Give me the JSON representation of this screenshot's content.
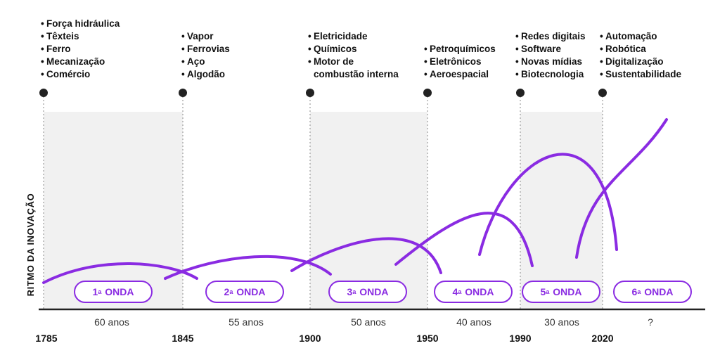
{
  "axis_label": "RITMO DA INOVAÇÃO",
  "accent_color": "#8a2be2",
  "years": [
    "1785",
    "1845",
    "1900",
    "1950",
    "1990",
    "2020"
  ],
  "durations": [
    "60 anos",
    "55 anos",
    "50 anos",
    "40 anos",
    "30 anos",
    "?"
  ],
  "waves": [
    {
      "num": "1",
      "ord": "a",
      "word": "ONDA"
    },
    {
      "num": "2",
      "ord": "a",
      "word": "ONDA"
    },
    {
      "num": "3",
      "ord": "a",
      "word": "ONDA"
    },
    {
      "num": "4",
      "ord": "a",
      "word": "ONDA"
    },
    {
      "num": "5",
      "ord": "a",
      "word": "ONDA"
    },
    {
      "num": "6",
      "ord": "a",
      "word": "ONDA"
    }
  ],
  "technologies": [
    [
      "Força hidráulica",
      "Têxteis",
      "Ferro",
      "Mecanização",
      "Comércio"
    ],
    [
      "Vapor",
      "Ferrovias",
      "Aço",
      "Algodão"
    ],
    [
      "Eletricidade",
      "Químicos",
      "Motor de",
      "combustão interna"
    ],
    [
      "Petroquímicos",
      "Eletrônicos",
      "Aeroespacial"
    ],
    [
      "Redes digitais",
      "Software",
      "Novas mídias",
      "Biotecnologia"
    ],
    [
      "Automação",
      "Robótica",
      "Digitalização",
      "Sustentabilidade"
    ]
  ],
  "chart_data": {
    "type": "line",
    "ylabel": "RITMO DA INOVAÇÃO",
    "x_ticks": [
      "1785",
      "1845",
      "1900",
      "1950",
      "1990",
      "2020"
    ],
    "series": [
      {
        "label": "1ª ONDA",
        "period": "1785–1845",
        "duration": "60 anos",
        "relative_peak": 1
      },
      {
        "label": "2ª ONDA",
        "period": "1845–1900",
        "duration": "55 anos",
        "relative_peak": 1.3
      },
      {
        "label": "3ª ONDA",
        "period": "1900–1950",
        "duration": "50 anos",
        "relative_peak": 2.2
      },
      {
        "label": "4ª ONDA",
        "period": "1950–1990",
        "duration": "40 anos",
        "relative_peak": 4
      },
      {
        "label": "5ª ONDA",
        "period": "1990–2020",
        "duration": "30 anos",
        "relative_peak": 6.4
      },
      {
        "label": "6ª ONDA",
        "period": "2020–",
        "duration": "?",
        "relative_peak": null
      }
    ]
  }
}
